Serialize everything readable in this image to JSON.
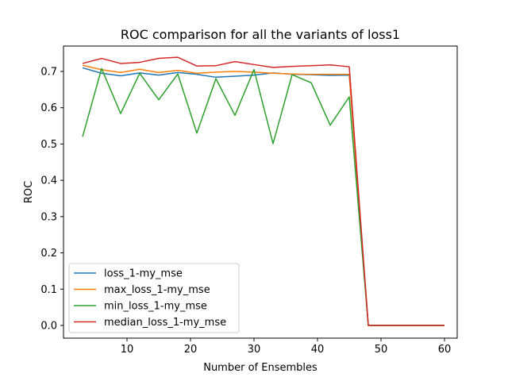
{
  "chart_data": {
    "type": "line",
    "title": "ROC comparison for all the variants of loss1",
    "xlabel": "Number of Ensembles",
    "ylabel": "ROC",
    "xlim": [
      0,
      62
    ],
    "ylim": [
      -0.035,
      0.77
    ],
    "xticks": [
      10,
      20,
      30,
      40,
      50,
      60
    ],
    "yticks": [
      0.0,
      0.1,
      0.2,
      0.3,
      0.4,
      0.5,
      0.6,
      0.7
    ],
    "grid": false,
    "legend_position": "lower-left",
    "x": [
      3,
      6,
      9,
      12,
      15,
      18,
      21,
      24,
      27,
      30,
      33,
      36,
      39,
      42,
      45,
      48,
      51,
      54,
      57,
      60
    ],
    "series": [
      {
        "name": "loss_1-my_mse",
        "color": "#1f77b4",
        "values": [
          0.71,
          0.695,
          0.688,
          0.696,
          0.69,
          0.697,
          0.692,
          0.684,
          0.687,
          0.69,
          0.696,
          0.692,
          0.691,
          0.689,
          0.69,
          0.0,
          0.0,
          0.0,
          0.0,
          0.0
        ]
      },
      {
        "name": "max_loss_1-my_mse",
        "color": "#ff7f0e",
        "values": [
          0.717,
          0.705,
          0.697,
          0.706,
          0.697,
          0.703,
          0.695,
          0.698,
          0.7,
          0.698,
          0.695,
          0.693,
          0.692,
          0.692,
          0.692,
          0.0,
          0.0,
          0.0,
          0.0,
          0.0
        ]
      },
      {
        "name": "min_loss_1-my_mse",
        "color": "#2ca02c",
        "values": [
          0.52,
          0.708,
          0.584,
          0.695,
          0.622,
          0.693,
          0.53,
          0.68,
          0.579,
          0.705,
          0.501,
          0.691,
          0.669,
          0.552,
          0.63,
          0.0,
          0.0,
          0.0,
          0.0,
          0.0
        ]
      },
      {
        "name": "median_loss_1-my_mse",
        "color": "#d62728",
        "values": [
          0.722,
          0.736,
          0.722,
          0.725,
          0.736,
          0.739,
          0.715,
          0.716,
          0.727,
          0.719,
          0.711,
          0.714,
          0.716,
          0.718,
          0.713,
          0.0,
          0.0,
          0.0,
          0.0,
          0.0
        ]
      }
    ]
  }
}
